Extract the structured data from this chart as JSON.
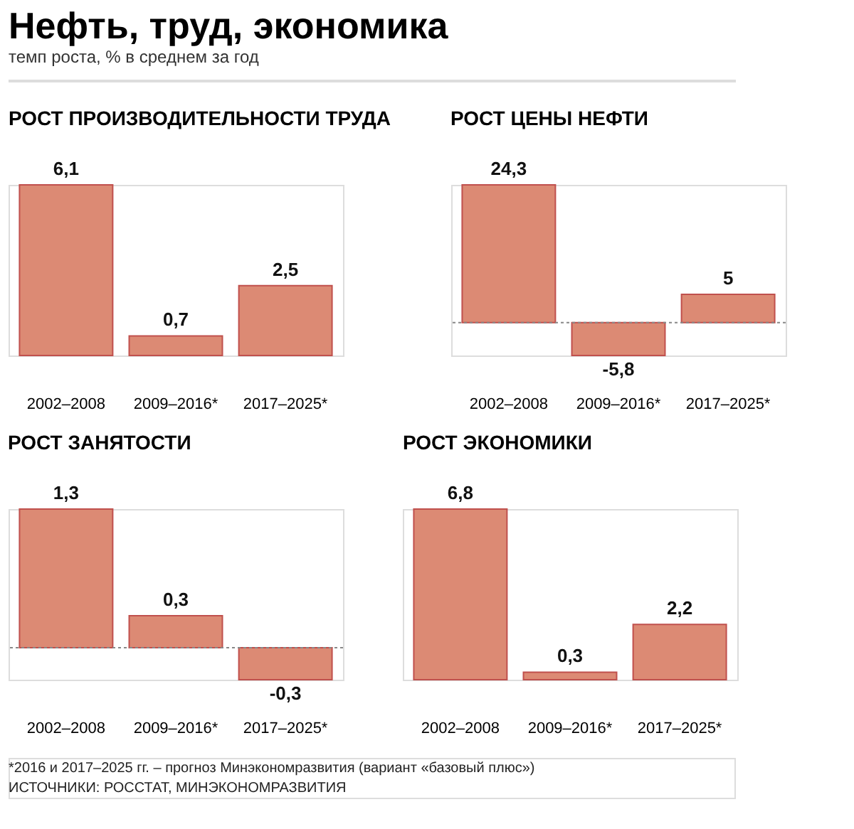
{
  "chart_data": [
    {
      "type": "other",
      "title": "Нефть, труд, экономика",
      "subtitle": "темп роста, % в среднем за год"
    },
    {
      "type": "bar",
      "title": "РОСТ ПРОИЗВОДИТЕЛЬНОСТИ ТРУДА",
      "categories": [
        "2002–2008",
        "2009–2016*",
        "2017–2025*"
      ],
      "values": [
        6.1,
        0.7,
        2.5
      ],
      "value_labels": [
        "6,1",
        "0,7",
        "2,5"
      ],
      "color": "#dc8a74"
    },
    {
      "type": "bar",
      "title": "РОСТ ЦЕНЫ НЕФТИ",
      "categories": [
        "2002–2008",
        "2009–2016*",
        "2017–2025*"
      ],
      "values": [
        24.3,
        -5.8,
        5
      ],
      "value_labels": [
        "24,3",
        "-5,8",
        "5"
      ],
      "color": "#dc8a74",
      "ref_lines": [
        {
          "axis": "y",
          "value": 0,
          "color": "#888888",
          "line_style": "dotted"
        }
      ]
    },
    {
      "type": "bar",
      "title": "РОСТ ЗАНЯТОСТИ",
      "categories": [
        "2002–2008",
        "2009–2016*",
        "2017–2025*"
      ],
      "values": [
        1.3,
        0.3,
        -0.3
      ],
      "value_labels": [
        "1,3",
        "0,3",
        "-0,3"
      ],
      "color": "#dc8a74",
      "ref_lines": [
        {
          "axis": "y",
          "value": 0,
          "color": "#888888",
          "line_style": "dotted"
        }
      ]
    },
    {
      "type": "bar",
      "title": "РОСТ ЭКОНОМИКИ",
      "categories": [
        "2002–2008",
        "2009–2016*",
        "2017–2025*"
      ],
      "values": [
        6.8,
        0.3,
        2.2
      ],
      "value_labels": [
        "6,8",
        "0,3",
        "2,2"
      ],
      "color": "#dc8a74",
      "annotations": [
        "*2016 и 2017–2025 гг. – прогноз Минэкономразвития (вариант «базовый плюс»)",
        "ИСТОЧНИКИ: РОССТАТ, МИНЭКОНОМРАЗВИТИЯ"
      ]
    }
  ]
}
